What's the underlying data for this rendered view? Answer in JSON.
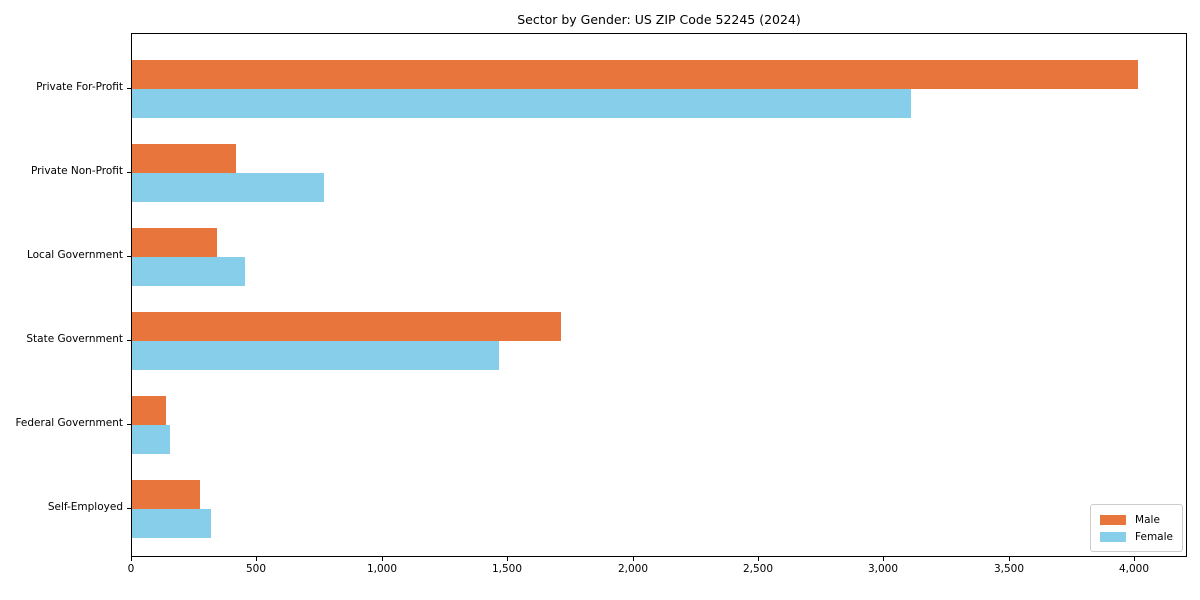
{
  "title": "Sector by Gender: US ZIP Code 52245 (2024)",
  "colors": {
    "male_bar": "#E8763C",
    "female_bar": "#87CEEB",
    "axis": "#000000",
    "legend_border": "#CCCCCC",
    "background": "#FFFFFF"
  },
  "chart_data": {
    "type": "bar",
    "orientation": "horizontal",
    "title": "Sector by Gender: US ZIP Code 52245 (2024)",
    "xlabel": "",
    "ylabel": "",
    "categories": [
      "Private For-Profit",
      "Private Non-Profit",
      "Local Government",
      "State Government",
      "Federal Government",
      "Self-Employed"
    ],
    "series": [
      {
        "name": "Male",
        "color": "#E8763C",
        "values": [
          4010,
          415,
          340,
          1710,
          135,
          270
        ]
      },
      {
        "name": "Female",
        "color": "#87CEEB",
        "values": [
          3105,
          765,
          450,
          1465,
          150,
          315
        ]
      }
    ],
    "xlim": [
      0,
      4210
    ],
    "xticks": [
      0,
      500,
      1000,
      1500,
      2000,
      2500,
      3000,
      3500,
      4000
    ],
    "xtick_labels": [
      "0",
      "500",
      "1,000",
      "1,500",
      "2,000",
      "2,500",
      "3,000",
      "3,500",
      "4,000"
    ],
    "grid": false,
    "legend_position": "lower right",
    "legend_entries": [
      "Male",
      "Female"
    ]
  }
}
